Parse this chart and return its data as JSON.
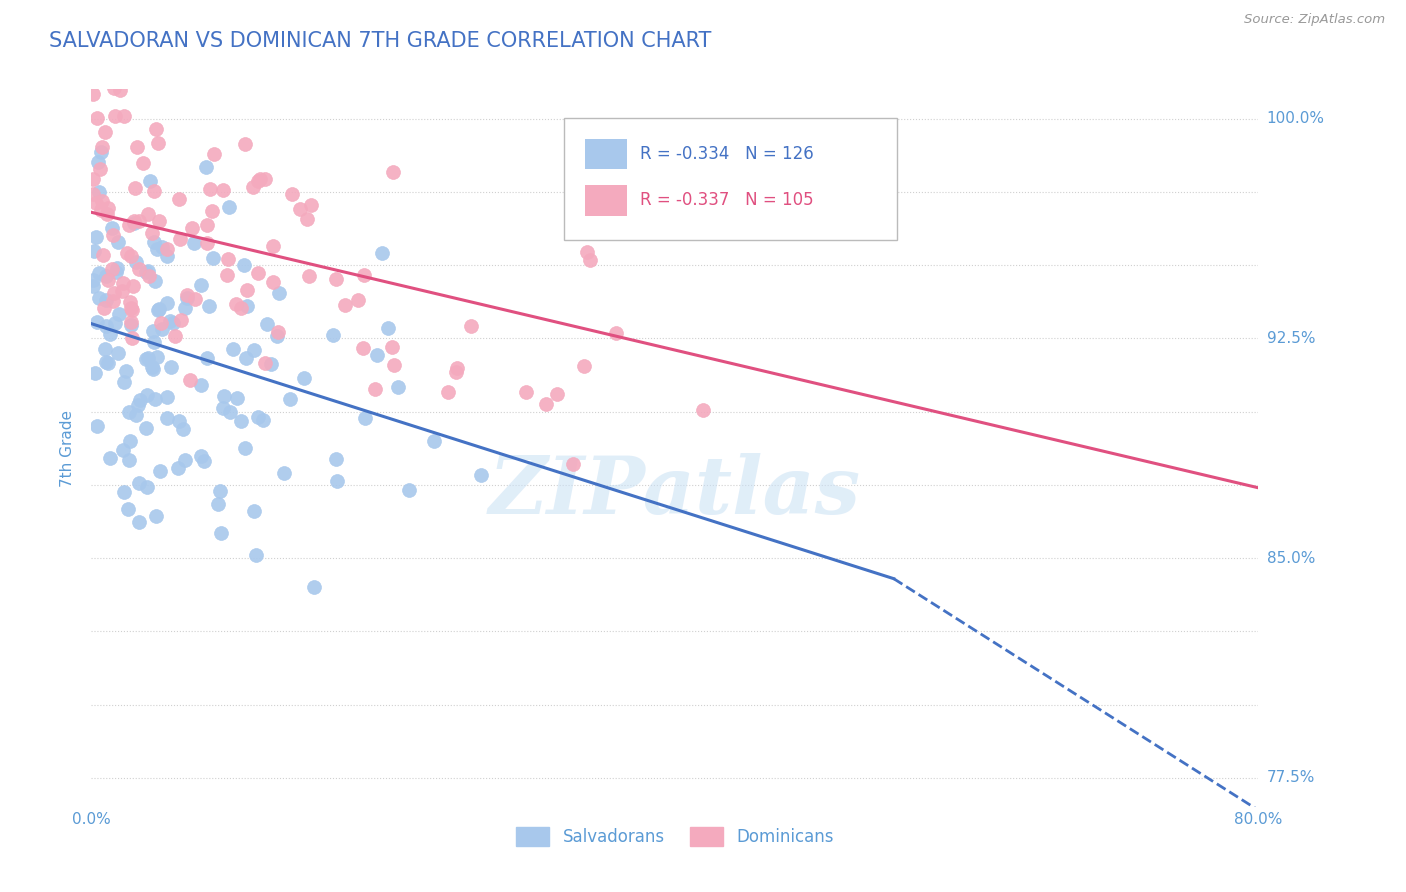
{
  "title": "SALVADORAN VS DOMINICAN 7TH GRADE CORRELATION CHART",
  "source": "Source: ZipAtlas.com",
  "ylabel": "7th Grade",
  "legend_label1": "Salvadorans",
  "legend_label2": "Dominicans",
  "R1": -0.334,
  "N1": 126,
  "R2": -0.337,
  "N2": 105,
  "color_blue": "#A8C8EC",
  "color_pink": "#F4AABE",
  "color_blue_line": "#4472C4",
  "color_pink_line": "#E05080",
  "color_title": "#4472C4",
  "color_axis_text": "#5B9BD5",
  "color_grid": "#D0D0D0",
  "xlim": [
    0.0,
    0.8
  ],
  "ylim": [
    0.765,
    1.01
  ],
  "yticks": [
    0.775,
    0.8,
    0.825,
    0.85,
    0.875,
    0.9,
    0.925,
    0.95,
    0.975,
    1.0
  ],
  "ytick_labels_right": [
    "77.5%",
    "",
    "",
    "85.0%",
    "",
    "",
    "92.5%",
    "",
    "",
    "100.0%"
  ],
  "background_color": "#FFFFFF",
  "watermark": "ZIPatlas",
  "blue_line_x0": 0.0,
  "blue_line_y0": 0.93,
  "blue_line_x1": 0.55,
  "blue_line_y1": 0.843,
  "blue_line_x1_dash": 0.55,
  "blue_line_y1_dash": 0.843,
  "blue_line_x2_dash": 0.8,
  "blue_line_y2_dash": 0.764,
  "pink_line_x0": 0.0,
  "pink_line_y0": 0.968,
  "pink_line_x1": 0.8,
  "pink_line_y1": 0.874,
  "seed1": 7,
  "seed2": 13
}
